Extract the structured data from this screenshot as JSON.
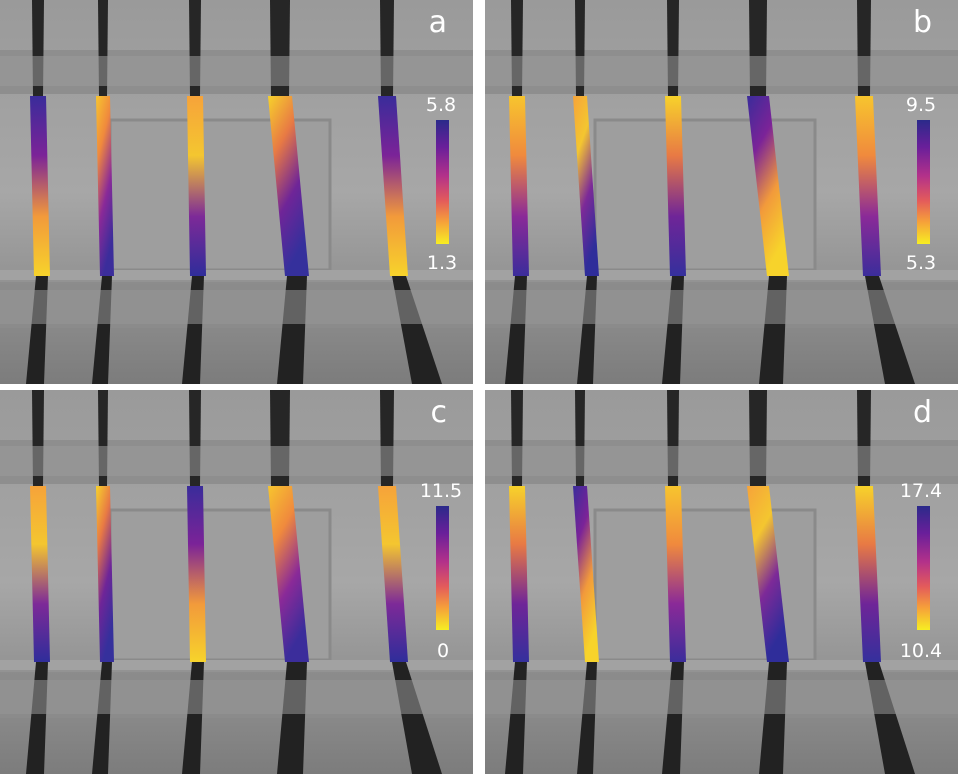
{
  "figure": {
    "panels": [
      {
        "letter": "a",
        "colorbar": {
          "max": "5.8",
          "min": "1.3"
        }
      },
      {
        "letter": "b",
        "colorbar": {
          "max": "9.5",
          "min": "5.3"
        }
      },
      {
        "letter": "c",
        "colorbar": {
          "max": "11.5",
          "min": "0"
        }
      },
      {
        "letter": "d",
        "colorbar": {
          "max": "17.4",
          "min": "10.4"
        }
      }
    ],
    "colormap": [
      "#2b2a8a",
      "#6a1f9a",
      "#b3318a",
      "#e35b5b",
      "#f6a03a",
      "#f7ee22"
    ]
  }
}
